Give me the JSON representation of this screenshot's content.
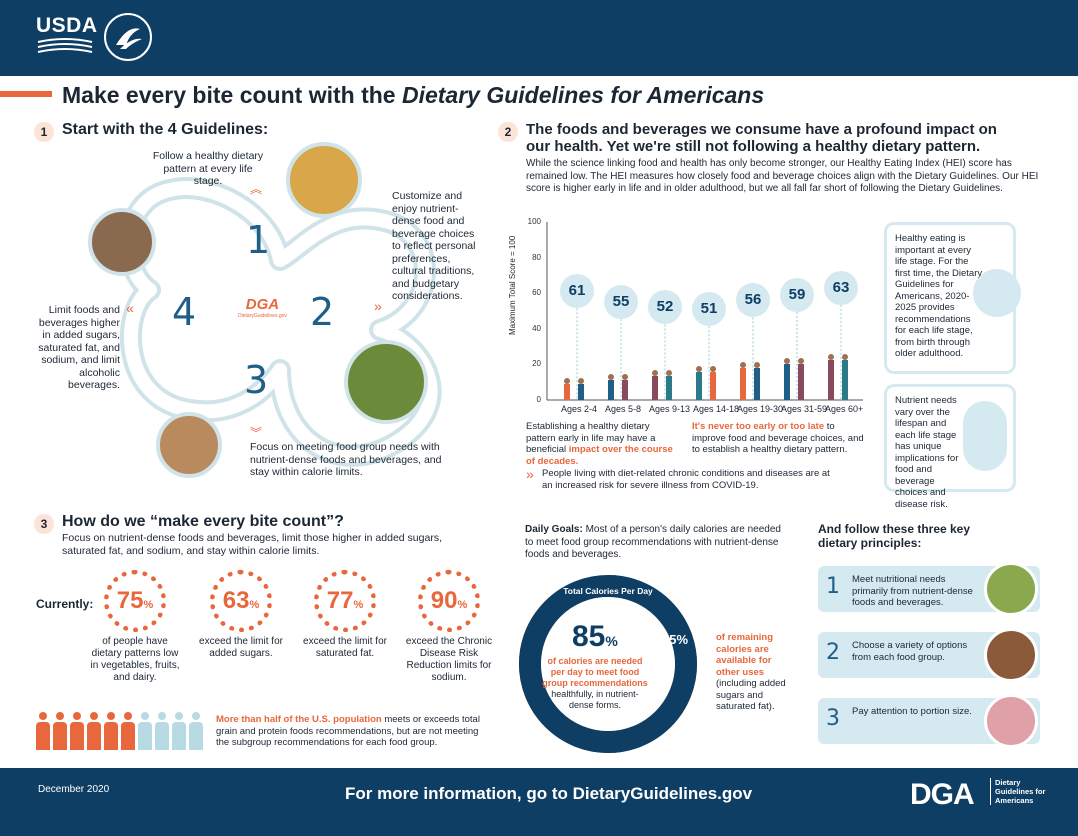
{
  "header": {
    "logo_text": "USDA",
    "seal_label": "U.S. Department of Health and Human Services"
  },
  "title": {
    "prefix": "Make every bite count with the ",
    "emph": "Dietary Guidelines for Americans"
  },
  "section1": {
    "num": "1",
    "title": "Start with the 4 Guidelines:",
    "g1_text": "Follow a healthy dietary pattern at every life stage.",
    "g2_text": "Customize and enjoy nutrient-dense food and beverage choices to reflect personal preferences, cultural traditions, and budgetary considerations.",
    "g3_text": "Focus on meeting food group needs with nutrient-dense foods and beverages, and stay within calorie limits.",
    "g4_text": "Limit foods and beverages higher in added sugars, saturated fat, and sodium, and limit alcoholic beverages.",
    "n1": "1",
    "n2": "2",
    "n3": "3",
    "n4": "4",
    "center_logo": "DGA",
    "center_logo_sub": "DietaryGuidelines.gov"
  },
  "section2": {
    "num": "2",
    "title_line1": "The foods and beverages we consume have a profound impact on",
    "title_line2": "our health. Yet we're still not following a healthy dietary pattern.",
    "intro": "While the science linking food and health has only become stronger, our Healthy Eating Index (HEI) score has remained low. The HEI measures how closely food and beverage choices align with the Dietary Guidelines. Our HEI score is higher early in life and in older adulthood, but we all fall far short of following the Dietary Guidelines.",
    "note1_a": "Establishing a healthy dietary pattern early in life may have a beneficial ",
    "note1_b": "impact over the course of decades.",
    "note2_a": "It's never too early or too late",
    "note2_b": " to improve food and beverage choices, and to establish a healthy dietary pattern.",
    "covid_note": "People living with diet-related chronic conditions and diseases are at an increased risk for severe illness from COVID-19.",
    "box1": "Healthy eating is important at every life stage. For the first time, the Dietary Guidelines for Americans, 2020-2025 provides recommendations for each life stage, from birth through older adulthood.",
    "box2": "Nutrient needs vary over the lifespan and each life stage has unique implications for food and beverage choices and disease risk."
  },
  "chart_data": {
    "type": "scatter",
    "title": "",
    "xlabel": "",
    "ylabel": "Maximum Total Score = 100",
    "ylim": [
      0,
      100
    ],
    "yticks": [
      "0",
      "20",
      "40",
      "60",
      "80",
      "100"
    ],
    "categories": [
      "Ages 2-4",
      "Ages 5-8",
      "Ages 9-13",
      "Ages 14-18",
      "Ages 19-30",
      "Ages 31-59",
      "Ages 60+"
    ],
    "values": [
      61,
      55,
      52,
      51,
      56,
      59,
      63
    ]
  },
  "section3": {
    "num": "3",
    "title": "How do we “make every bite count”?",
    "intro": "Focus on nutrient-dense foods and beverages, limit those higher in added sugars, saturated fat, and sodium, and stay within calorie limits.",
    "currently": "Currently:",
    "stats": [
      {
        "value": "75",
        "unit": "%",
        "text": "of people have dietary patterns low in vegetables, fruits, and dairy."
      },
      {
        "value": "63",
        "unit": "%",
        "text": "exceed the limit for added sugars."
      },
      {
        "value": "77",
        "unit": "%",
        "text": "exceed the limit for saturated fat."
      },
      {
        "value": "90",
        "unit": "%",
        "text": "exceed the Chronic Disease Risk Reduction limits for sodium."
      }
    ],
    "pop_a": "More than half of the U.S. population",
    "pop_b": " meets or exceeds total grain and protein foods recommendations, but are not meeting the subgroup recommendations for each food group.",
    "pop_fraction": 0.5
  },
  "daily": {
    "label": "Daily Goals:",
    "text": " Most of a person's daily calories are needed to meet food group recommendations with nutrient-dense foods and beverages.",
    "pie_title": "Total Calories Per Day",
    "pct_main": "85",
    "pct_unit": "%",
    "main_a": "of calories are needed per day to meet food group recommendations",
    "main_b": " healthfully, in nutrient-dense forms.",
    "pct_rest": "15%",
    "rest_a": "of remaining calories are available for other uses",
    "rest_b": " (including added sugars and saturated fat).",
    "share_main": 0.85
  },
  "principles": {
    "title": "And follow these three key dietary principles:",
    "items": [
      {
        "num": "1",
        "text": "Meet nutritional needs primarily from nutrient-dense foods and beverages."
      },
      {
        "num": "2",
        "text": "Choose a variety of options from each food group."
      },
      {
        "num": "3",
        "text": "Pay attention to portion size."
      }
    ]
  },
  "footer": {
    "date": "December 2020",
    "link": "For more information, go to DietaryGuidelines.gov",
    "logo": "DGA",
    "logo_sub": "Dietary Guidelines for Americans"
  },
  "colors": {
    "navy": "#0f3e64",
    "accent": "#e8673c",
    "light_blue": "#d5eaf0",
    "mid_blue": "#1f5e86"
  }
}
